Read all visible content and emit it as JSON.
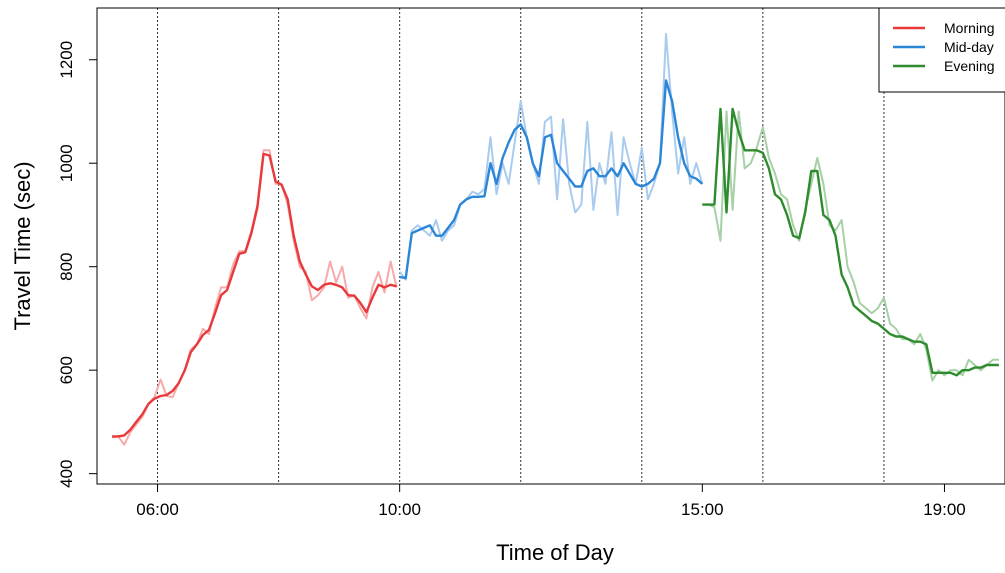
{
  "chart_data": {
    "type": "line",
    "title": "",
    "xlabel": "Time of Day",
    "ylabel": "Travel Time (sec)",
    "x_unit": "hour of day",
    "xlim": [
      5.0,
      20.0
    ],
    "ylim": [
      380,
      1300
    ],
    "x_ticks": [
      {
        "value": 6,
        "label": "06:00"
      },
      {
        "value": 10,
        "label": "10:00"
      },
      {
        "value": 15,
        "label": "15:00"
      },
      {
        "value": 19,
        "label": "19:00"
      }
    ],
    "y_ticks": [
      400,
      600,
      800,
      1000,
      1200
    ],
    "vlines": [
      6,
      8,
      10,
      12,
      14,
      16,
      18,
      20
    ],
    "grid": false,
    "legend": {
      "position": "top-right",
      "entries": [
        {
          "label": "Morning",
          "color": "#E8393B"
        },
        {
          "label": "Mid-day",
          "color": "#2B86D8"
        },
        {
          "label": "Evening",
          "color": "#2E8B2E"
        }
      ]
    },
    "series": [
      {
        "name": "Morning",
        "color": "#E8393B",
        "raw_color": "#F7AAAA",
        "raw": {
          "x": [
            5.25,
            5.35,
            5.45,
            5.55,
            5.65,
            5.75,
            5.85,
            5.95,
            6.05,
            6.15,
            6.25,
            6.35,
            6.45,
            6.55,
            6.65,
            6.75,
            6.85,
            6.95,
            7.05,
            7.15,
            7.25,
            7.35,
            7.45,
            7.55,
            7.65,
            7.75,
            7.85,
            7.95,
            8.05,
            8.15,
            8.25,
            8.35,
            8.45,
            8.55,
            8.65,
            8.75,
            8.85,
            8.95,
            9.05,
            9.15,
            9.25,
            9.35,
            9.45,
            9.55,
            9.65,
            9.75,
            9.85,
            9.95
          ],
          "y": [
            470,
            472,
            456,
            480,
            495,
            510,
            535,
            548,
            582,
            550,
            548,
            575,
            600,
            640,
            650,
            680,
            670,
            720,
            760,
            760,
            805,
            830,
            830,
            870,
            920,
            1025,
            1025,
            960,
            960,
            920,
            850,
            800,
            790,
            735,
            745,
            760,
            810,
            770,
            800,
            740,
            745,
            720,
            700,
            760,
            790,
            750,
            810,
            760
          ]
        },
        "smooth": {
          "x": [
            5.25,
            5.35,
            5.45,
            5.55,
            5.65,
            5.75,
            5.85,
            5.95,
            6.05,
            6.15,
            6.25,
            6.35,
            6.45,
            6.55,
            6.65,
            6.75,
            6.85,
            6.95,
            7.05,
            7.15,
            7.25,
            7.35,
            7.45,
            7.55,
            7.65,
            7.75,
            7.85,
            7.95,
            8.05,
            8.15,
            8.25,
            8.35,
            8.45,
            8.55,
            8.65,
            8.75,
            8.85,
            8.95,
            9.05,
            9.15,
            9.25,
            9.35,
            9.45,
            9.55,
            9.65,
            9.75,
            9.85,
            9.95
          ],
          "y": [
            472,
            472,
            474,
            485,
            500,
            515,
            535,
            545,
            550,
            552,
            560,
            575,
            600,
            635,
            650,
            668,
            678,
            710,
            745,
            755,
            790,
            825,
            828,
            865,
            915,
            1018,
            1015,
            965,
            958,
            930,
            860,
            810,
            785,
            762,
            755,
            765,
            768,
            765,
            760,
            745,
            744,
            730,
            712,
            740,
            765,
            760,
            765,
            762
          ]
        }
      },
      {
        "name": "Mid-day",
        "color": "#2B86D8",
        "raw_color": "#A8CBEF",
        "raw": {
          "x": [
            10.0,
            10.1,
            10.2,
            10.3,
            10.4,
            10.5,
            10.6,
            10.7,
            10.8,
            10.9,
            11.0,
            11.1,
            11.2,
            11.3,
            11.4,
            11.5,
            11.6,
            11.7,
            11.8,
            11.9,
            12.0,
            12.1,
            12.2,
            12.3,
            12.4,
            12.5,
            12.6,
            12.7,
            12.8,
            12.9,
            13.0,
            13.1,
            13.2,
            13.3,
            13.4,
            13.5,
            13.6,
            13.7,
            13.8,
            13.9,
            14.0,
            14.1,
            14.2,
            14.3,
            14.4,
            14.5,
            14.6,
            14.7,
            14.8,
            14.9,
            15.0
          ],
          "y": [
            790,
            775,
            870,
            880,
            870,
            860,
            890,
            850,
            870,
            880,
            920,
            930,
            945,
            940,
            950,
            1050,
            940,
            1000,
            960,
            1040,
            1120,
            1050,
            1000,
            960,
            1080,
            1090,
            930,
            1085,
            960,
            905,
            920,
            1080,
            910,
            1000,
            960,
            1060,
            900,
            1050,
            1000,
            960,
            1030,
            930,
            960,
            1000,
            1250,
            1100,
            980,
            1050,
            960,
            1000,
            960
          ]
        },
        "smooth": {
          "x": [
            10.0,
            10.1,
            10.2,
            10.3,
            10.4,
            10.5,
            10.6,
            10.7,
            10.8,
            10.9,
            11.0,
            11.1,
            11.2,
            11.3,
            11.4,
            11.5,
            11.6,
            11.7,
            11.8,
            11.9,
            12.0,
            12.1,
            12.2,
            12.3,
            12.4,
            12.5,
            12.6,
            12.7,
            12.8,
            12.9,
            13.0,
            13.1,
            13.2,
            13.3,
            13.4,
            13.5,
            13.6,
            13.7,
            13.8,
            13.9,
            14.0,
            14.1,
            14.2,
            14.3,
            14.4,
            14.5,
            14.6,
            14.7,
            14.8,
            14.9,
            15.0
          ],
          "y": [
            780,
            778,
            865,
            870,
            875,
            880,
            860,
            860,
            875,
            890,
            920,
            930,
            935,
            935,
            936,
            1000,
            960,
            1010,
            1040,
            1065,
            1075,
            1050,
            1000,
            975,
            1050,
            1055,
            1000,
            985,
            970,
            955,
            955,
            985,
            990,
            975,
            975,
            990,
            975,
            1000,
            980,
            960,
            955,
            960,
            970,
            1000,
            1160,
            1120,
            1050,
            1000,
            975,
            970,
            960
          ]
        }
      },
      {
        "name": "Evening",
        "color": "#2E8B2E",
        "raw_color": "#A6D0A6",
        "raw": {
          "x": [
            15.0,
            15.1,
            15.2,
            15.3,
            15.4,
            15.5,
            15.6,
            15.7,
            15.8,
            15.9,
            16.0,
            16.1,
            16.2,
            16.3,
            16.4,
            16.5,
            16.6,
            16.7,
            16.8,
            16.9,
            17.0,
            17.1,
            17.2,
            17.3,
            17.4,
            17.5,
            17.6,
            17.7,
            17.8,
            17.9,
            18.0,
            18.1,
            18.2,
            18.3,
            18.4,
            18.5,
            18.6,
            18.7,
            18.8,
            18.9,
            19.0,
            19.1,
            19.2,
            19.3,
            19.4,
            19.5,
            19.6,
            19.7,
            19.8,
            19.9
          ],
          "y": [
            920,
            920,
            915,
            850,
            1100,
            910,
            1100,
            990,
            1000,
            1030,
            1070,
            1010,
            980,
            940,
            930,
            880,
            850,
            910,
            960,
            1010,
            960,
            880,
            870,
            890,
            800,
            770,
            730,
            720,
            710,
            720,
            740,
            690,
            680,
            660,
            660,
            650,
            670,
            640,
            580,
            600,
            590,
            600,
            600,
            590,
            620,
            610,
            600,
            610,
            620,
            620
          ]
        },
        "smooth": {
          "x": [
            15.0,
            15.1,
            15.2,
            15.3,
            15.4,
            15.5,
            15.6,
            15.7,
            15.8,
            15.9,
            16.0,
            16.1,
            16.2,
            16.3,
            16.4,
            16.5,
            16.6,
            16.7,
            16.8,
            16.9,
            17.0,
            17.1,
            17.2,
            17.3,
            17.4,
            17.5,
            17.6,
            17.7,
            17.8,
            17.9,
            18.0,
            18.1,
            18.2,
            18.3,
            18.4,
            18.5,
            18.6,
            18.7,
            18.8,
            18.9,
            19.0,
            19.1,
            19.2,
            19.3,
            19.4,
            19.5,
            19.6,
            19.7,
            19.8,
            19.9
          ],
          "y": [
            920,
            920,
            920,
            1105,
            905,
            1105,
            1060,
            1025,
            1025,
            1025,
            1020,
            990,
            940,
            930,
            900,
            860,
            855,
            905,
            985,
            985,
            900,
            890,
            860,
            785,
            760,
            725,
            715,
            705,
            695,
            690,
            680,
            670,
            665,
            665,
            660,
            655,
            655,
            650,
            595,
            595,
            595,
            595,
            590,
            600,
            600,
            605,
            605,
            610,
            610,
            610
          ]
        }
      }
    ]
  }
}
